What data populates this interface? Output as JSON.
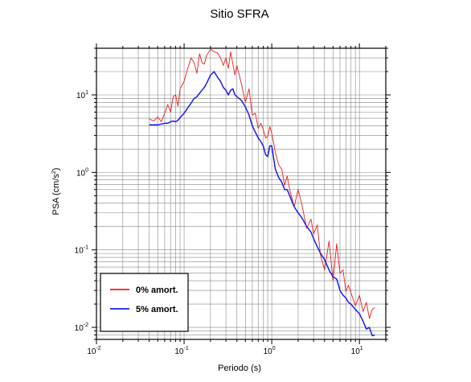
{
  "chart_data": {
    "type": "line",
    "title": "Sitio SFRA",
    "xlabel": "Periodo (s)",
    "ylabel": "PSA (cm/s²)",
    "ylabel_parts": {
      "base": "PSA (cm/s",
      "sup": "2",
      "close": ")"
    },
    "x_scale": "log",
    "y_scale": "log",
    "xlim": [
      0.01,
      20
    ],
    "ylim": [
      0.007,
      40
    ],
    "grid": true,
    "legend_position": "bottom-left",
    "x_ticks": [
      {
        "base": "10",
        "exp": "-2",
        "value": 0.01
      },
      {
        "base": "10",
        "exp": "-1",
        "value": 0.1
      },
      {
        "base": "10",
        "exp": "0",
        "value": 1
      },
      {
        "base": "10",
        "exp": "1",
        "value": 10
      }
    ],
    "y_ticks": [
      {
        "base": "10",
        "exp": "-2",
        "value": 0.01
      },
      {
        "base": "10",
        "exp": "-1",
        "value": 0.1
      },
      {
        "base": "10",
        "exp": "0",
        "value": 1
      },
      {
        "base": "10",
        "exp": "1",
        "value": 10
      }
    ],
    "series": [
      {
        "name": "0% amort.",
        "color": "#e8201c",
        "x": [
          0.04,
          0.045,
          0.05,
          0.055,
          0.06,
          0.065,
          0.07,
          0.075,
          0.08,
          0.085,
          0.09,
          0.1,
          0.11,
          0.12,
          0.13,
          0.14,
          0.15,
          0.16,
          0.17,
          0.18,
          0.2,
          0.22,
          0.24,
          0.26,
          0.28,
          0.3,
          0.32,
          0.34,
          0.36,
          0.38,
          0.4,
          0.45,
          0.5,
          0.55,
          0.6,
          0.65,
          0.7,
          0.75,
          0.8,
          0.85,
          0.9,
          0.95,
          1.0,
          1.1,
          1.2,
          1.3,
          1.4,
          1.5,
          1.6,
          1.8,
          2.0,
          2.2,
          2.5,
          2.8,
          3.0,
          3.3,
          3.6,
          4.0,
          4.5,
          5.0,
          5.5,
          6.0,
          6.5,
          7.0,
          7.5,
          8.0,
          9.0,
          10.0,
          11.0,
          12.0,
          13.0,
          14.0,
          15.0
        ],
        "values": [
          4.9,
          4.6,
          5.2,
          4.5,
          5.8,
          7.5,
          6.0,
          9.5,
          10.0,
          7.2,
          12.0,
          15.0,
          22.0,
          30.0,
          26.0,
          19.0,
          34.0,
          26.0,
          25.0,
          32.0,
          39.0,
          36.0,
          35.0,
          30.0,
          24.0,
          30.0,
          22.0,
          36.0,
          25.0,
          18.0,
          24.0,
          14.0,
          8.0,
          12.0,
          5.5,
          5.8,
          3.7,
          4.3,
          3.6,
          2.8,
          2.9,
          3.9,
          3.2,
          1.8,
          1.25,
          1.1,
          0.68,
          0.9,
          0.6,
          0.36,
          0.6,
          0.39,
          0.19,
          0.25,
          0.16,
          0.21,
          0.085,
          0.055,
          0.13,
          0.04,
          0.12,
          0.05,
          0.055,
          0.029,
          0.035,
          0.028,
          0.019,
          0.026,
          0.016,
          0.021,
          0.013,
          0.017,
          0.018
        ]
      },
      {
        "name": "5% amort.",
        "color": "#1c1ce8",
        "x": [
          0.04,
          0.045,
          0.05,
          0.055,
          0.06,
          0.065,
          0.07,
          0.075,
          0.08,
          0.085,
          0.09,
          0.1,
          0.11,
          0.12,
          0.13,
          0.14,
          0.15,
          0.16,
          0.17,
          0.18,
          0.2,
          0.22,
          0.24,
          0.26,
          0.28,
          0.3,
          0.32,
          0.34,
          0.36,
          0.38,
          0.4,
          0.45,
          0.5,
          0.55,
          0.6,
          0.65,
          0.7,
          0.75,
          0.8,
          0.85,
          0.9,
          0.95,
          1.0,
          1.1,
          1.2,
          1.3,
          1.4,
          1.5,
          1.6,
          1.8,
          2.0,
          2.2,
          2.5,
          2.8,
          3.0,
          3.3,
          3.6,
          4.0,
          4.5,
          5.0,
          5.5,
          6.0,
          6.5,
          7.0,
          7.5,
          8.0,
          9.0,
          10.0,
          11.0,
          12.0,
          13.0,
          14.0,
          15.0
        ],
        "values": [
          4.1,
          4.1,
          4.1,
          4.2,
          4.3,
          4.3,
          4.5,
          4.6,
          4.5,
          4.7,
          5.1,
          5.8,
          6.8,
          7.8,
          9.0,
          9.5,
          10.5,
          11.5,
          12.5,
          14.0,
          18.0,
          20.0,
          17.0,
          15.0,
          12.5,
          11.5,
          10.0,
          11.5,
          12.0,
          10.0,
          9.5,
          8.5,
          7.0,
          5.5,
          4.0,
          3.3,
          2.8,
          2.5,
          2.2,
          1.7,
          1.6,
          2.2,
          2.2,
          1.1,
          0.86,
          0.75,
          0.6,
          0.6,
          0.5,
          0.36,
          0.3,
          0.26,
          0.2,
          0.17,
          0.14,
          0.11,
          0.09,
          0.075,
          0.055,
          0.045,
          0.042,
          0.03,
          0.026,
          0.024,
          0.021,
          0.02,
          0.017,
          0.015,
          0.012,
          0.0095,
          0.01,
          0.0078,
          0.008
        ]
      }
    ]
  }
}
